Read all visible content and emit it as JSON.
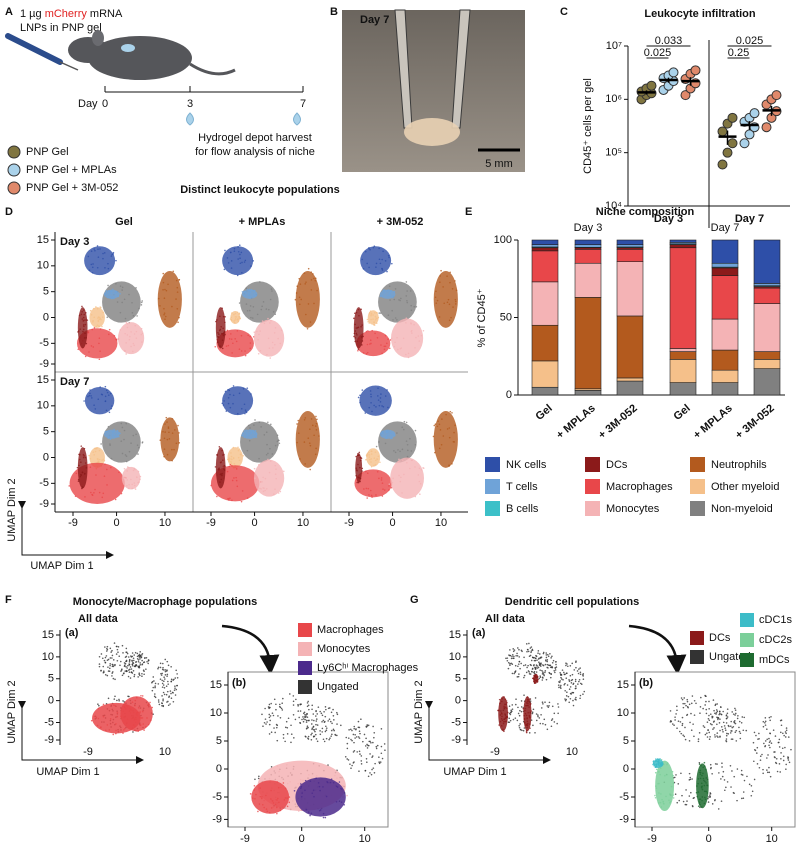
{
  "panel_labels": [
    "A",
    "B",
    "C",
    "D",
    "E",
    "F",
    "G"
  ],
  "panel_a": {
    "injection": [
      "1 µg ",
      "mCherry",
      " mRNA"
    ],
    "injection_line2": "LNPs in PNP gel",
    "day_label": "Day",
    "days": [
      "0",
      "3",
      "7"
    ],
    "harvest": [
      "Hydrogel depot harvest",
      "for flow analysis of niche"
    ]
  },
  "panel_b": {
    "day": "Day 7",
    "scale": "5 mm"
  },
  "chart_data": [
    {
      "type": "dot",
      "title": "Leukocyte infiltration",
      "ylabel": "CD45⁺ cells per gel",
      "categories": [
        "Day 3",
        "Day 7"
      ],
      "log": true,
      "ylim": [
        10000,
        10000000
      ],
      "yticks": [
        {
          "value": 10000,
          "label": "10⁴"
        },
        {
          "value": 100000,
          "label": "10⁵"
        },
        {
          "value": 1000000,
          "label": "10⁶"
        },
        {
          "value": 10000000,
          "label": "10⁷"
        }
      ],
      "series": [
        {
          "name": "PNP Gel",
          "color": "#807540",
          "values": [
            [
              1000000,
              1200000,
              1300000,
              1400000,
              1600000,
              1800000
            ],
            [
              60000,
              100000,
              150000,
              250000,
              350000,
              450000
            ]
          ],
          "means": [
            1350000,
            200000
          ],
          "errors": [
            120000,
            60000
          ]
        },
        {
          "name": "PNP Gel + MPLAs",
          "color": "#aad2ea",
          "values": [
            [
              1500000,
              1800000,
              2200000,
              2500000,
              2800000,
              3200000
            ],
            [
              150000,
              220000,
              300000,
              380000,
              450000,
              550000
            ]
          ],
          "means": [
            2300000,
            330000
          ],
          "errors": [
            250000,
            60000
          ]
        },
        {
          "name": "PNP Gel + 3M-052",
          "color": "#e0896b",
          "values": [
            [
              1200000,
              1600000,
              2000000,
              2400000,
              3000000,
              3500000
            ],
            [
              300000,
              450000,
              600000,
              800000,
              1000000,
              1200000
            ]
          ],
          "means": [
            2200000,
            620000
          ],
          "errors": [
            400000,
            130000
          ]
        }
      ],
      "annotations": [
        "0.025",
        "0.033",
        "0.25",
        "0.025"
      ]
    },
    {
      "type": "stacked_bar",
      "title": "Niche composition",
      "ylabel": "% of CD45⁺",
      "categories": [
        "Gel",
        "+ MPLAs",
        "+ 3M-052",
        "Gel",
        "+ MPLAs",
        "+ 3M-052"
      ],
      "groups": [
        "Day 3",
        "Day 7"
      ],
      "ylim": [
        0,
        100
      ],
      "yticks": [
        0,
        50,
        100
      ],
      "series": [
        {
          "name": "NK cells",
          "color": "#2e4fa8",
          "values": [
            3,
            3,
            3,
            1.5,
            15,
            28
          ]
        },
        {
          "name": "T cells",
          "color": "#6fa3d8",
          "values": [
            1.5,
            1.7,
            1.5,
            1,
            2.5,
            1.5
          ]
        },
        {
          "name": "B cells",
          "color": "#3cc0c8",
          "values": [
            0.5,
            0.3,
            0.5,
            0.5,
            0.5,
            0.5
          ]
        },
        {
          "name": "DCs",
          "color": "#8b1a1a",
          "values": [
            2,
            1,
            1,
            2,
            5,
            1
          ]
        },
        {
          "name": "Macrophages",
          "color": "#e8474a",
          "values": [
            20,
            9,
            8,
            65,
            28,
            10
          ]
        },
        {
          "name": "Monocytes",
          "color": "#f4b3b5",
          "values": [
            28,
            22,
            35,
            2,
            20,
            31
          ]
        },
        {
          "name": "Neutrophils",
          "color": "#b35a1e",
          "values": [
            23,
            59,
            40,
            5,
            13,
            5
          ]
        },
        {
          "name": "Other myeloid",
          "color": "#f5c08a",
          "values": [
            17,
            1,
            2,
            15,
            8,
            6
          ]
        },
        {
          "name": "Non-myeloid",
          "color": "#808080",
          "values": [
            5,
            3,
            9,
            8,
            8,
            17
          ]
        }
      ]
    }
  ],
  "panel_d": {
    "title": "Distinct leukocyte populations",
    "columns": [
      "Gel",
      "+ MPLAs",
      "+ 3M-052"
    ],
    "rows": [
      "Day 3",
      "Day 7"
    ],
    "yticks": [
      15,
      10,
      5,
      0,
      -5,
      -9
    ],
    "xticks": [
      -9,
      0,
      10
    ],
    "ylabel": "UMAP Dim 2",
    "xlabel": "UMAP Dim 1"
  },
  "panel_f": {
    "title": "Monocyte/Macrophage populations",
    "all_data": "All data",
    "subpanels": [
      "(a)",
      "(b)"
    ],
    "legend": [
      {
        "name": "Macrophages",
        "color": "#e8474a"
      },
      {
        "name": "Monocytes",
        "color": "#f4b3b5"
      },
      {
        "name": "Ly6Cʰⁱ Macrophages",
        "color": "#4b2a8c"
      },
      {
        "name": "Ungated",
        "color": "#333333"
      }
    ],
    "yticks": [
      15,
      10,
      5,
      0,
      -5,
      -9
    ],
    "xticks_a": [
      -9,
      10
    ],
    "xticks_b": [
      -9,
      0,
      10
    ],
    "ylabel": "UMAP Dim 2",
    "xlabel": "UMAP Dim 1"
  },
  "panel_g": {
    "title": "Dendritic cell populations",
    "all_data": "All data",
    "subpanels": [
      "(a)",
      "(b)"
    ],
    "legend": [
      {
        "name": "DCs",
        "color": "#8b1a1a"
      },
      {
        "name": "Ungated",
        "color": "#333333"
      },
      {
        "name": "cDC1s",
        "color": "#3cbcc8"
      },
      {
        "name": "cDC2s",
        "color": "#7ccf9a"
      },
      {
        "name": "mDCs",
        "color": "#1e6b30"
      }
    ],
    "yticks": [
      15,
      10,
      5,
      0,
      -5,
      -9
    ],
    "xticks_a": [
      -9,
      10
    ],
    "xticks_b": [
      -9,
      0,
      10
    ],
    "ylabel": "UMAP Dim 2",
    "xlabel": "UMAP Dim 1"
  }
}
